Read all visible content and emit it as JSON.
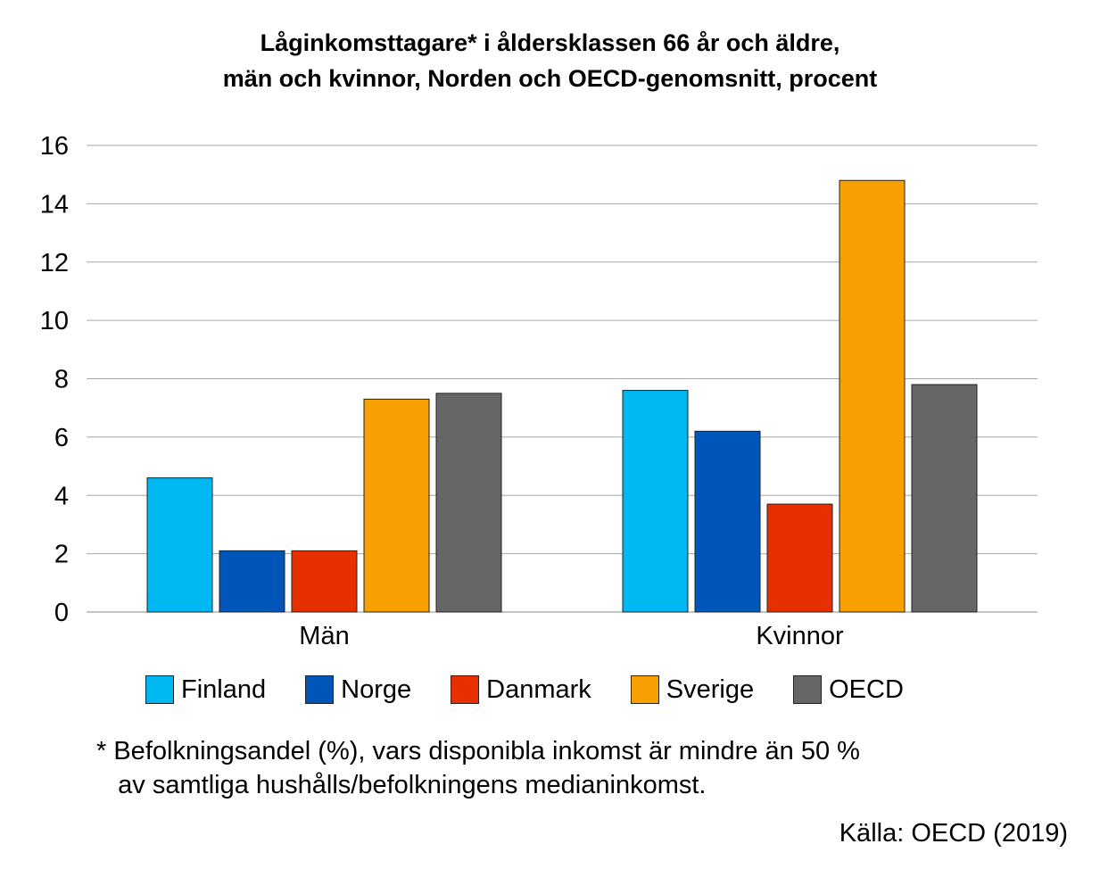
{
  "chart_data": {
    "type": "bar",
    "title": "Låginkomsttagare* i åldersklassen 66 år och äldre,",
    "subtitle": "män och kvinnor, Norden och OECD-genomsnitt, procent",
    "categories": [
      "Män",
      "Kvinnor"
    ],
    "series": [
      {
        "name": "Finland",
        "color": "#00B8F1",
        "values": [
          4.6,
          7.6
        ]
      },
      {
        "name": "Norge",
        "color": "#0055B8",
        "values": [
          2.1,
          6.2
        ]
      },
      {
        "name": "Danmark",
        "color": "#E63000",
        "values": [
          2.1,
          3.7
        ]
      },
      {
        "name": "Sverige",
        "color": "#F8A000",
        "values": [
          7.3,
          14.8
        ]
      },
      {
        "name": "OECD",
        "color": "#666666",
        "values": [
          7.5,
          7.8
        ]
      }
    ],
    "ylim": [
      0,
      16
    ],
    "yticks": [
      "0",
      "2",
      "4",
      "6",
      "8",
      "10",
      "12",
      "14",
      "16"
    ],
    "grid": true,
    "legend_position": "bottom"
  },
  "footnote": {
    "line1": "* Befolkningsandel (%), vars disponibla inkomst är mindre än 50 %",
    "line2": "   av samtliga hushålls/befolkningens medianinkomst."
  },
  "source": "Källa: OECD (2019)"
}
